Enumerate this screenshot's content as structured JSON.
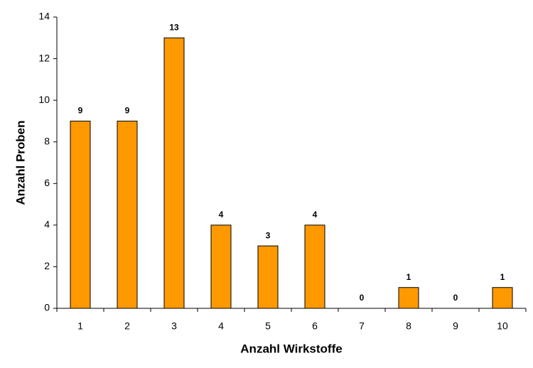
{
  "chart_data": {
    "type": "bar",
    "x_label": "Anzahl Wirkstoffe",
    "y_label": "Anzahl Proben",
    "categories": [
      "1",
      "2",
      "3",
      "4",
      "5",
      "6",
      "7",
      "8",
      "9",
      "10"
    ],
    "values": [
      9,
      9,
      13,
      4,
      3,
      4,
      0,
      1,
      0,
      1
    ],
    "color": "#ff9900",
    "ylim": [
      0,
      14
    ],
    "yticks": [
      0,
      2,
      4,
      6,
      8,
      10,
      12,
      14
    ],
    "grid": false
  }
}
